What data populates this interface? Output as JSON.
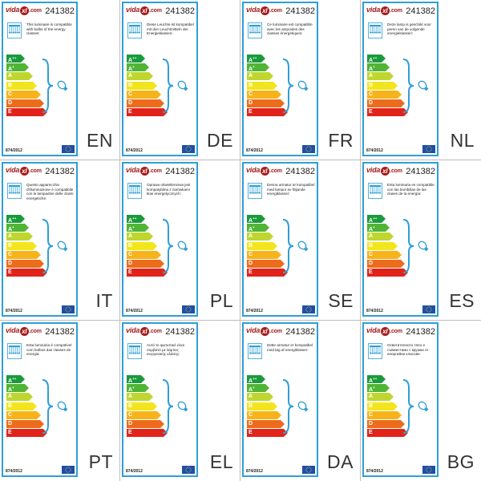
{
  "brand": {
    "logo_prefix": "vida",
    "logo_mark": "xl",
    "logo_suffix": ".com"
  },
  "product_code": "241382",
  "regulation": "874/2012",
  "classes": [
    {
      "letter": "A",
      "sup": "++",
      "color": "#1a9a3b",
      "width": 18
    },
    {
      "letter": "A",
      "sup": "+",
      "color": "#50b435",
      "width": 23
    },
    {
      "letter": "A",
      "sup": "",
      "color": "#bfd630",
      "width": 28
    },
    {
      "letter": "B",
      "sup": "",
      "color": "#f2e51e",
      "width": 33
    },
    {
      "letter": "C",
      "sup": "",
      "color": "#f6b31a",
      "width": 38
    },
    {
      "letter": "D",
      "sup": "",
      "color": "#ec6c1c",
      "width": 42
    },
    {
      "letter": "E",
      "sup": "",
      "color": "#e2231a",
      "width": 46
    }
  ],
  "labels": [
    {
      "lang": "EN",
      "text": "This luminaire is compatible with bulbs of the energy classes:"
    },
    {
      "lang": "DE",
      "text": "Diese Leuchte ist kompatibel mit den Leuchtmitteln der Energieklassen:"
    },
    {
      "lang": "FR",
      "text": "Ce luminaire est compatible avec les ampoules des classes énergétiques:"
    },
    {
      "lang": "NL",
      "text": "Deze lamp is geschikt voor peren van de volgende energieklassen:"
    },
    {
      "lang": "IT",
      "text": "Questo apparecchio d'illuminazione è compatibile con le lampadine delle classi energetiche:"
    },
    {
      "lang": "PL",
      "text": "Oprawa oświetleniowa jest kompatybilna z żarówkami klas energetycznych:"
    },
    {
      "lang": "SE",
      "text": "Denna armatur är kompatibel med lampor av följande energiklasser:"
    },
    {
      "lang": "ES",
      "text": "Esta luminaria es compatible con las bombillas de las clases de la energía:"
    },
    {
      "lang": "PT",
      "text": "Esta luminária é compatível com bulbos das classes de energia:"
    },
    {
      "lang": "EL",
      "text": "Αυτό το φωτιστικό είναι συμβατό με λάμπες ενεργειακής κλάσης:"
    },
    {
      "lang": "DA",
      "text": "Dette armatur er kompatibel med løg af energiklasser:"
    },
    {
      "lang": "BG",
      "text": "Осветителното тяло е съвместимо с крушки от енергийни класове:"
    }
  ]
}
